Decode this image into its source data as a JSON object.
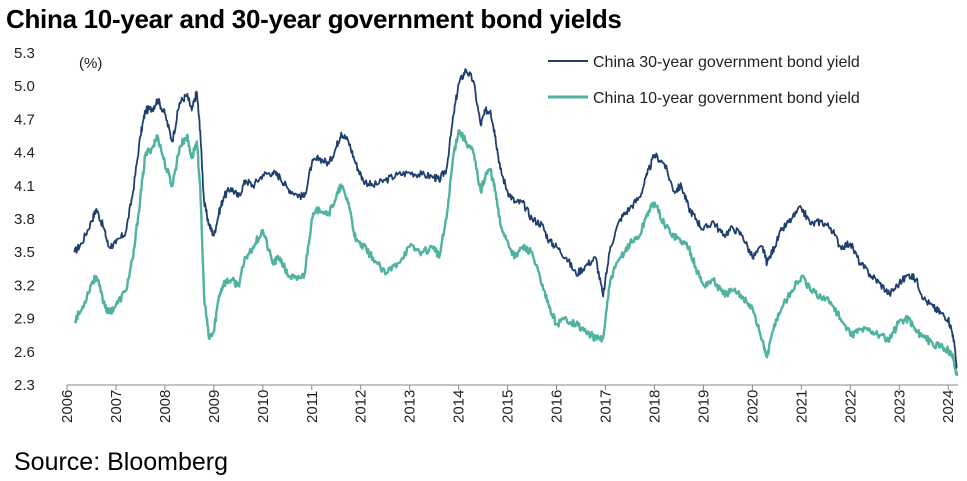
{
  "chart_data": {
    "type": "line",
    "title": "China 10-year and 30-year government bond yields",
    "source": "Source: Bloomberg",
    "ylabel": "(%)",
    "ylim": [
      2.3,
      5.3
    ],
    "y_ticks": [
      "2.3",
      "2.6",
      "2.9",
      "3.2",
      "3.5",
      "3.8",
      "4.1",
      "4.4",
      "4.7",
      "5.0",
      "5.3"
    ],
    "xlim": [
      2006.0,
      2024.2
    ],
    "x_ticks": [
      "2006",
      "2007",
      "2008",
      "2009",
      "2010",
      "2011",
      "2012",
      "2013",
      "2014",
      "2015",
      "2016",
      "2017",
      "2018",
      "2019",
      "2020",
      "2021",
      "2022",
      "2023",
      "2024"
    ],
    "legend_position": "top-right",
    "series": [
      {
        "name": "China 30-year government bond yield",
        "color": "#1f3f6e",
        "x": [
          2006.15,
          2006.3,
          2006.5,
          2006.6,
          2006.75,
          2006.85,
          2007.0,
          2007.2,
          2007.35,
          2007.5,
          2007.6,
          2007.75,
          2007.85,
          2008.0,
          2008.15,
          2008.3,
          2008.45,
          2008.55,
          2008.65,
          2008.72,
          2008.8,
          2008.9,
          2009.0,
          2009.1,
          2009.2,
          2009.35,
          2009.5,
          2009.65,
          2009.8,
          2010.0,
          2010.2,
          2010.35,
          2010.5,
          2010.7,
          2010.85,
          2011.0,
          2011.15,
          2011.35,
          2011.5,
          2011.6,
          2011.75,
          2011.9,
          2012.05,
          2012.25,
          2012.5,
          2012.75,
          2013.0,
          2013.25,
          2013.5,
          2013.6,
          2013.75,
          2013.9,
          2014.0,
          2014.15,
          2014.3,
          2014.45,
          2014.55,
          2014.65,
          2014.75,
          2014.85,
          2015.0,
          2015.15,
          2015.3,
          2015.5,
          2015.7,
          2015.85,
          2016.0,
          2016.2,
          2016.4,
          2016.6,
          2016.8,
          2016.95,
          2017.1,
          2017.3,
          2017.5,
          2017.7,
          2017.85,
          2018.0,
          2018.2,
          2018.4,
          2018.55,
          2018.7,
          2018.85,
          2019.0,
          2019.2,
          2019.4,
          2019.6,
          2019.8,
          2020.0,
          2020.2,
          2020.3,
          2020.45,
          2020.6,
          2020.8,
          2021.0,
          2021.2,
          2021.4,
          2021.6,
          2021.8,
          2022.0,
          2022.2,
          2022.4,
          2022.6,
          2022.8,
          2023.0,
          2023.2,
          2023.35,
          2023.5,
          2023.7,
          2023.85,
          2024.0,
          2024.1,
          2024.18
        ],
        "values": [
          3.5,
          3.58,
          3.78,
          3.89,
          3.72,
          3.55,
          3.58,
          3.68,
          4.05,
          4.55,
          4.78,
          4.8,
          4.88,
          4.75,
          4.5,
          4.85,
          4.92,
          4.78,
          4.95,
          4.6,
          3.95,
          3.75,
          3.65,
          3.85,
          4.0,
          4.08,
          4.0,
          4.15,
          4.1,
          4.2,
          4.22,
          4.18,
          4.08,
          4.02,
          4.0,
          4.3,
          4.35,
          4.3,
          4.45,
          4.58,
          4.5,
          4.3,
          4.15,
          4.1,
          4.15,
          4.2,
          4.22,
          4.2,
          4.18,
          4.15,
          4.25,
          4.75,
          5.02,
          5.15,
          5.05,
          4.65,
          4.78,
          4.78,
          4.55,
          4.25,
          4.05,
          3.95,
          3.95,
          3.8,
          3.75,
          3.6,
          3.55,
          3.45,
          3.3,
          3.38,
          3.45,
          3.1,
          3.55,
          3.8,
          3.9,
          4.0,
          4.2,
          4.38,
          4.3,
          4.05,
          4.1,
          3.9,
          3.8,
          3.7,
          3.78,
          3.65,
          3.72,
          3.65,
          3.45,
          3.55,
          3.4,
          3.55,
          3.7,
          3.8,
          3.9,
          3.75,
          3.78,
          3.72,
          3.55,
          3.58,
          3.4,
          3.3,
          3.22,
          3.12,
          3.22,
          3.3,
          3.25,
          3.08,
          3.0,
          2.95,
          2.9,
          2.75,
          2.45
        ]
      },
      {
        "name": "China 10-year government bond yield",
        "color": "#4fb3a0",
        "x": [
          2006.15,
          2006.3,
          2006.5,
          2006.6,
          2006.75,
          2006.85,
          2007.0,
          2007.2,
          2007.35,
          2007.5,
          2007.6,
          2007.75,
          2007.85,
          2008.0,
          2008.15,
          2008.3,
          2008.45,
          2008.55,
          2008.65,
          2008.72,
          2008.8,
          2008.9,
          2009.0,
          2009.1,
          2009.2,
          2009.35,
          2009.5,
          2009.65,
          2009.8,
          2010.0,
          2010.2,
          2010.35,
          2010.5,
          2010.7,
          2010.85,
          2011.0,
          2011.15,
          2011.35,
          2011.5,
          2011.6,
          2011.75,
          2011.9,
          2012.05,
          2012.25,
          2012.5,
          2012.75,
          2013.0,
          2013.25,
          2013.5,
          2013.6,
          2013.75,
          2013.9,
          2014.0,
          2014.15,
          2014.3,
          2014.45,
          2014.55,
          2014.65,
          2014.75,
          2014.85,
          2015.0,
          2015.15,
          2015.3,
          2015.5,
          2015.7,
          2015.85,
          2016.0,
          2016.2,
          2016.4,
          2016.6,
          2016.8,
          2016.95,
          2017.1,
          2017.3,
          2017.5,
          2017.7,
          2017.85,
          2018.0,
          2018.2,
          2018.4,
          2018.55,
          2018.7,
          2018.85,
          2019.0,
          2019.2,
          2019.4,
          2019.6,
          2019.8,
          2020.0,
          2020.2,
          2020.3,
          2020.45,
          2020.6,
          2020.8,
          2021.0,
          2021.2,
          2021.4,
          2021.6,
          2021.8,
          2022.0,
          2022.2,
          2022.4,
          2022.6,
          2022.8,
          2023.0,
          2023.2,
          2023.35,
          2023.5,
          2023.7,
          2023.85,
          2024.0,
          2024.1,
          2024.18
        ],
        "values": [
          2.88,
          2.98,
          3.22,
          3.28,
          3.05,
          2.95,
          3.02,
          3.15,
          3.45,
          4.0,
          4.38,
          4.45,
          4.55,
          4.3,
          4.1,
          4.45,
          4.55,
          4.35,
          4.5,
          4.1,
          3.1,
          2.72,
          2.78,
          3.1,
          3.22,
          3.25,
          3.2,
          3.45,
          3.55,
          3.7,
          3.4,
          3.45,
          3.3,
          3.25,
          3.3,
          3.8,
          3.9,
          3.85,
          4.0,
          4.1,
          3.95,
          3.6,
          3.55,
          3.45,
          3.3,
          3.4,
          3.55,
          3.5,
          3.55,
          3.45,
          3.8,
          4.4,
          4.6,
          4.5,
          4.4,
          4.05,
          4.2,
          4.25,
          4.05,
          3.75,
          3.6,
          3.45,
          3.55,
          3.5,
          3.2,
          3.0,
          2.85,
          2.9,
          2.85,
          2.78,
          2.72,
          2.72,
          3.25,
          3.45,
          3.58,
          3.65,
          3.85,
          3.95,
          3.75,
          3.65,
          3.6,
          3.55,
          3.35,
          3.2,
          3.25,
          3.12,
          3.15,
          3.1,
          3.0,
          2.7,
          2.55,
          2.85,
          3.0,
          3.15,
          3.28,
          3.15,
          3.1,
          3.05,
          2.9,
          2.75,
          2.8,
          2.8,
          2.75,
          2.7,
          2.88,
          2.9,
          2.78,
          2.75,
          2.65,
          2.65,
          2.62,
          2.55,
          2.38
        ]
      }
    ]
  }
}
